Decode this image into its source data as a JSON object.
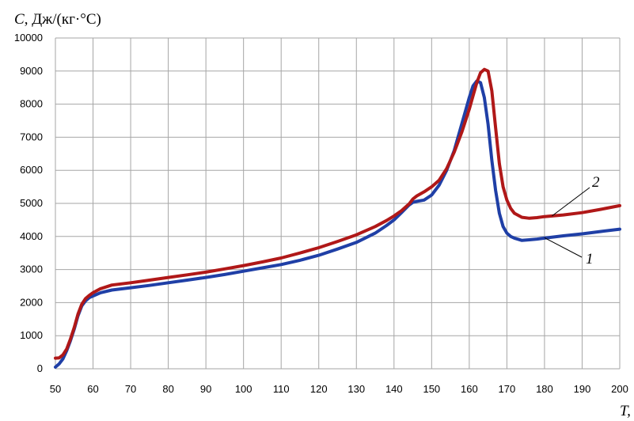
{
  "chart_data": {
    "type": "line",
    "ylabel_symbol": "C",
    "ylabel_rest": ", Дж/(кг·°C)",
    "xlabel_symbol": "T,",
    "xlim": [
      50,
      200
    ],
    "ylim": [
      0,
      10000
    ],
    "x_ticks": [
      50,
      60,
      70,
      80,
      90,
      100,
      110,
      120,
      130,
      140,
      150,
      160,
      170,
      180,
      190,
      200
    ],
    "y_ticks": [
      0,
      1000,
      2000,
      3000,
      4000,
      5000,
      6000,
      7000,
      8000,
      9000,
      10000
    ],
    "grid": true,
    "series": [
      {
        "name": "1",
        "color": "#1f3fa6",
        "x": [
          50,
          51,
          52,
          53,
          54,
          55,
          56,
          57,
          58,
          59,
          60,
          62,
          65,
          70,
          75,
          80,
          85,
          90,
          95,
          100,
          105,
          110,
          115,
          120,
          125,
          130,
          135,
          138,
          140,
          142,
          144,
          145,
          146,
          148,
          150,
          152,
          154,
          156,
          158,
          160,
          161,
          162,
          163,
          164,
          165,
          166,
          167,
          168,
          169,
          170,
          171,
          172,
          174,
          176,
          178,
          180,
          185,
          190,
          195,
          200
        ],
        "y": [
          50,
          150,
          300,
          550,
          850,
          1200,
          1600,
          1900,
          2050,
          2150,
          2200,
          2300,
          2380,
          2450,
          2520,
          2600,
          2680,
          2760,
          2850,
          2950,
          3050,
          3150,
          3280,
          3430,
          3620,
          3820,
          4100,
          4330,
          4500,
          4720,
          4950,
          5030,
          5060,
          5100,
          5250,
          5550,
          6000,
          6600,
          7400,
          8200,
          8550,
          8700,
          8650,
          8200,
          7400,
          6300,
          5400,
          4700,
          4300,
          4100,
          4000,
          3950,
          3880,
          3900,
          3920,
          3950,
          4020,
          4080,
          4150,
          4220
        ]
      },
      {
        "name": "2",
        "color": "#b01818",
        "x": [
          50,
          51,
          52,
          53,
          54,
          55,
          56,
          57,
          58,
          59,
          60,
          62,
          65,
          70,
          75,
          80,
          85,
          90,
          95,
          100,
          105,
          110,
          115,
          120,
          125,
          130,
          135,
          138,
          140,
          142,
          144,
          145,
          146,
          148,
          150,
          152,
          154,
          156,
          158,
          160,
          161,
          162,
          163,
          164,
          165,
          166,
          167,
          168,
          169,
          170,
          171,
          172,
          174,
          176,
          178,
          180,
          185,
          190,
          195,
          200
        ],
        "y": [
          320,
          330,
          420,
          600,
          900,
          1250,
          1650,
          1950,
          2120,
          2220,
          2300,
          2420,
          2530,
          2600,
          2680,
          2760,
          2840,
          2920,
          3020,
          3120,
          3230,
          3350,
          3500,
          3660,
          3850,
          4050,
          4300,
          4480,
          4620,
          4780,
          4980,
          5130,
          5220,
          5350,
          5500,
          5700,
          6050,
          6550,
          7150,
          7850,
          8250,
          8650,
          8950,
          9050,
          9000,
          8400,
          7300,
          6200,
          5500,
          5100,
          4850,
          4700,
          4580,
          4550,
          4570,
          4600,
          4650,
          4720,
          4820,
          4930
        ]
      }
    ],
    "annotations": [
      {
        "text": "2",
        "series": "2",
        "point_x": 182,
        "point_y": 4620
      },
      {
        "text": "1",
        "series": "1",
        "point_x": 180,
        "point_y": 3960
      }
    ]
  }
}
